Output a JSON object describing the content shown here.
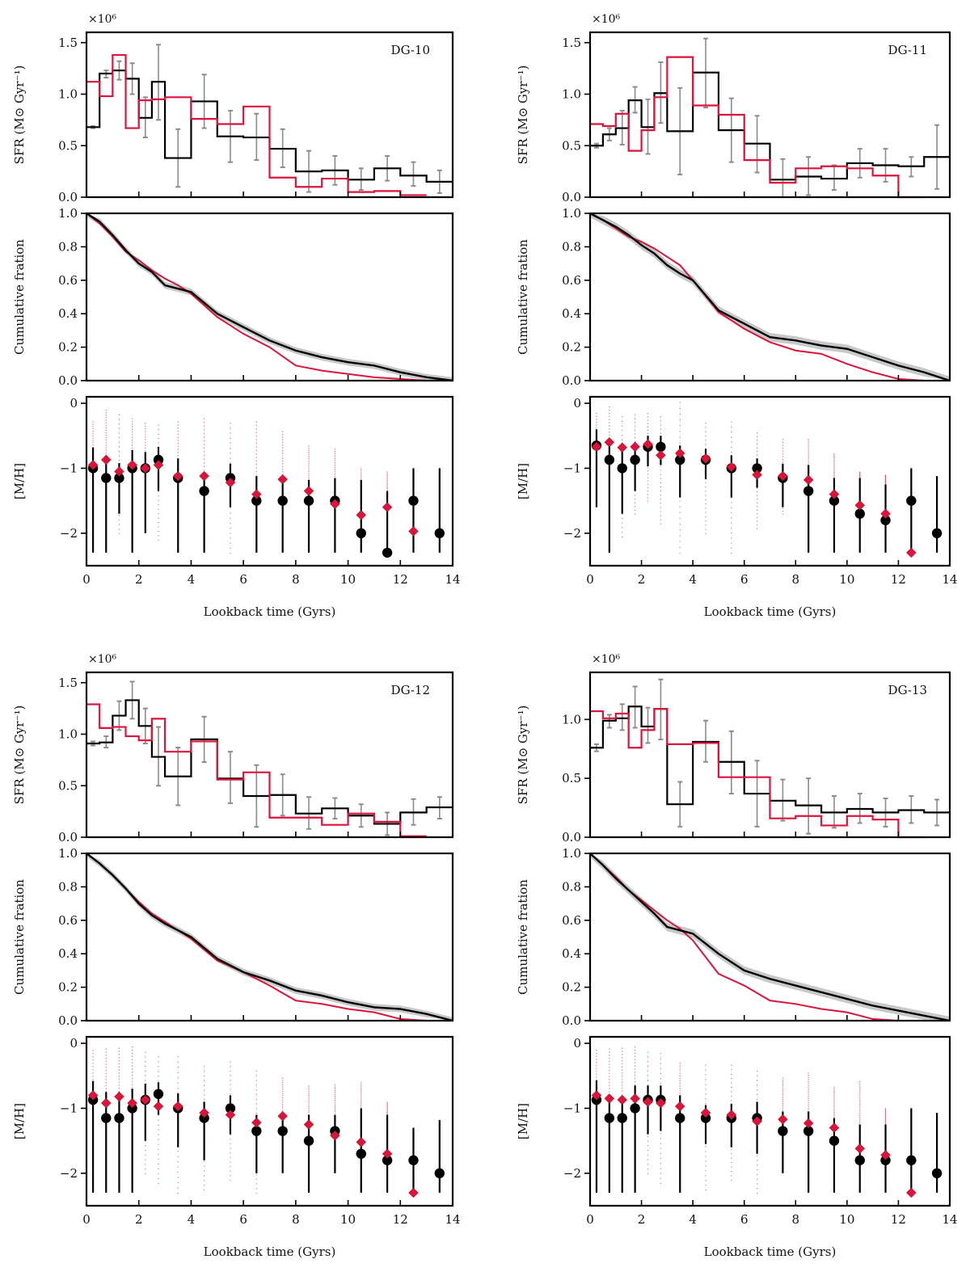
{
  "chart_data": {
    "type": "composite",
    "title": "",
    "colors": {
      "truth": "#000000",
      "recovered": "#dc143c",
      "errorbar": "#8c8c8c",
      "band": "#c8c8c8",
      "scatter": "#e05070"
    },
    "shared": {
      "xlabel": "Lookback time (Gyrs)",
      "xlim": [
        0,
        14
      ],
      "xticks": [
        0,
        2,
        4,
        6,
        8,
        10,
        12,
        14
      ],
      "sfr_ylabel": "SFR (M⊙ Gyr⁻¹)",
      "sfr_multiplier": "×10⁶",
      "cum_ylabel": "Cumulative fration",
      "mh_ylabel": "[M/H]",
      "cum_ylim": [
        0,
        1
      ],
      "cum_yticks": [
        "0.0",
        "0.2",
        "0.4",
        "0.6",
        "0.8",
        "1.0"
      ],
      "mh_ylim": [
        -2.5,
        0.1
      ],
      "mh_yticks": [
        "0",
        "−1",
        "−2"
      ],
      "bin_edges": [
        0,
        0.5,
        1,
        1.5,
        2,
        2.5,
        3,
        4,
        5,
        6,
        7,
        8,
        9,
        10,
        11,
        12,
        13,
        14
      ],
      "mh_x": [
        0.25,
        0.75,
        1.25,
        1.75,
        2.25,
        2.75,
        3.5,
        4.5,
        5.5,
        6.5,
        7.5,
        8.5,
        9.5,
        10.5,
        11.5,
        12.5,
        13.5
      ]
    },
    "galaxies": [
      {
        "name": "DG-10",
        "sfr_ylim": [
          0,
          1.6
        ],
        "sfr_yticks": [
          "0.0",
          "0.5",
          "1.0",
          "1.5"
        ],
        "sfr_black": [
          0.68,
          1.2,
          1.23,
          1.15,
          0.77,
          1.12,
          0.38,
          0.93,
          0.59,
          0.58,
          0.47,
          0.25,
          0.26,
          0.17,
          0.28,
          0.21,
          0.15
        ],
        "sfr_red": [
          1.12,
          0.98,
          1.38,
          0.67,
          0.94,
          0.95,
          0.97,
          0.76,
          0.71,
          0.88,
          0.19,
          0.1,
          0.18,
          0.05,
          0.06,
          0.02,
          null
        ],
        "sfr_err_low": [
          0.67,
          1.16,
          1.14,
          1.0,
          0.58,
          0.75,
          0.1,
          0.67,
          0.34,
          0.36,
          0.29,
          0.05,
          0.12,
          0.07,
          0.16,
          0.11,
          0.04
        ],
        "sfr_err_high": [
          0.69,
          1.23,
          1.32,
          1.3,
          0.97,
          1.48,
          0.66,
          1.19,
          0.84,
          0.81,
          0.66,
          0.45,
          0.4,
          0.28,
          0.4,
          0.34,
          0.26
        ],
        "cum_x": [
          0,
          0.5,
          1,
          1.5,
          2,
          2.5,
          3,
          3.5,
          4,
          5,
          6,
          7,
          8,
          9,
          10,
          11,
          12,
          13,
          14
        ],
        "cum_black": [
          1.0,
          0.95,
          0.87,
          0.78,
          0.7,
          0.65,
          0.57,
          0.55,
          0.53,
          0.4,
          0.32,
          0.24,
          0.18,
          0.14,
          0.11,
          0.09,
          0.05,
          0.02,
          0.0
        ],
        "cum_red": [
          1.0,
          0.94,
          0.86,
          0.77,
          0.72,
          0.66,
          0.61,
          0.57,
          0.52,
          0.38,
          0.28,
          0.2,
          0.09,
          0.06,
          0.04,
          0.02,
          0.01,
          0.0,
          0.0
        ],
        "cum_band": 0.02,
        "mh_black": [
          -1.0,
          -1.15,
          -1.15,
          -1.0,
          -1.0,
          -0.87,
          -1.15,
          -1.35,
          -1.15,
          -1.5,
          -1.5,
          -1.5,
          -1.5,
          -2.0,
          -2.3,
          -1.5,
          -2.0
        ],
        "mh_black_low": [
          -2.3,
          -2.3,
          -1.7,
          -2.3,
          -2.0,
          -1.35,
          -2.3,
          -2.3,
          -1.6,
          -2.3,
          -2.3,
          -2.3,
          -2.3,
          -2.3,
          -2.3,
          -2.3,
          -2.3
        ],
        "mh_black_high": [
          -0.68,
          -0.88,
          -0.92,
          -0.72,
          -0.75,
          -0.67,
          -0.85,
          -1.15,
          -0.93,
          -1.12,
          -1.12,
          -1.18,
          -1.15,
          -1.18,
          -1.35,
          -1.0,
          -1.0
        ],
        "mh_red": [
          -0.95,
          -0.87,
          -1.05,
          -0.95,
          -1.0,
          -0.95,
          -1.12,
          -1.12,
          -1.22,
          -1.4,
          -1.17,
          -1.35,
          -1.55,
          -1.72,
          -1.6,
          -1.97,
          null
        ],
        "mh_scatter_top": [
          -0.28,
          -0.1,
          -0.17,
          -0.23,
          -0.3,
          -0.33,
          -0.28,
          -0.23,
          -0.3,
          -0.28,
          -0.43,
          -0.65,
          -0.7,
          -1.0,
          -1.05,
          null,
          null
        ],
        "mh_scatter_bottom": [
          -1.2,
          -1.1,
          -2.0,
          -1.3,
          -1.4,
          -2.1,
          -1.5,
          -1.7,
          -2.3,
          -1.7,
          -1.5,
          -1.5,
          -1.6,
          null,
          null,
          null,
          null
        ]
      },
      {
        "name": "DG-11",
        "sfr_ylim": [
          0,
          1.6
        ],
        "sfr_yticks": [
          "0.0",
          "0.5",
          "1.0",
          "1.5"
        ],
        "sfr_black": [
          0.5,
          0.61,
          0.67,
          0.94,
          0.68,
          1.01,
          0.64,
          1.21,
          0.65,
          0.52,
          0.17,
          0.2,
          0.18,
          0.33,
          0.31,
          0.3,
          0.39
        ],
        "sfr_red": [
          0.71,
          0.69,
          0.81,
          0.45,
          0.65,
          0.97,
          1.36,
          0.89,
          0.8,
          0.36,
          0.14,
          0.28,
          0.3,
          0.28,
          0.21,
          0.0,
          null
        ],
        "sfr_err_low": [
          0.48,
          0.55,
          0.51,
          0.82,
          0.42,
          0.72,
          0.22,
          0.87,
          0.34,
          0.24,
          0.0,
          0.02,
          0.07,
          0.19,
          0.15,
          0.2,
          0.08
        ],
        "sfr_err_high": [
          0.52,
          0.67,
          0.84,
          1.07,
          0.95,
          1.31,
          1.06,
          1.54,
          0.96,
          0.79,
          0.37,
          0.39,
          0.31,
          0.47,
          0.47,
          0.39,
          0.7
        ],
        "cum_x": [
          0,
          0.5,
          1,
          1.5,
          2,
          2.5,
          3,
          3.5,
          4,
          5,
          6,
          7,
          8,
          9,
          10,
          11,
          12,
          13,
          14
        ],
        "cum_black": [
          1.0,
          0.96,
          0.92,
          0.87,
          0.81,
          0.76,
          0.69,
          0.64,
          0.6,
          0.42,
          0.34,
          0.26,
          0.24,
          0.21,
          0.19,
          0.14,
          0.09,
          0.05,
          0.0
        ],
        "cum_red": [
          1.0,
          0.96,
          0.91,
          0.86,
          0.83,
          0.79,
          0.74,
          0.69,
          0.6,
          0.41,
          0.31,
          0.23,
          0.18,
          0.16,
          0.1,
          0.05,
          0.01,
          0.0,
          0.0
        ],
        "cum_band": 0.025,
        "mh_black": [
          -0.65,
          -0.87,
          -1.0,
          -0.87,
          -0.67,
          -0.67,
          -0.87,
          -0.87,
          -1.0,
          -1.0,
          -1.15,
          -1.35,
          -1.5,
          -1.7,
          -1.8,
          -1.5,
          -2.0
        ],
        "mh_black_low": [
          -1.6,
          -2.3,
          -1.7,
          -1.35,
          -0.97,
          -0.95,
          -1.45,
          -1.17,
          -1.45,
          -1.3,
          -1.6,
          -2.3,
          -2.3,
          -2.3,
          -2.3,
          -2.3,
          -2.3
        ],
        "mh_black_high": [
          -0.4,
          -0.65,
          -0.72,
          -0.6,
          -0.5,
          -0.5,
          -0.65,
          -0.7,
          -0.8,
          -0.85,
          -0.93,
          -0.95,
          -1.15,
          -1.15,
          -1.25,
          -1.0,
          -1.12
        ],
        "mh_red": [
          -0.67,
          -0.6,
          -0.68,
          -0.67,
          -0.63,
          -0.8,
          -0.77,
          -0.85,
          -0.98,
          -1.1,
          -1.12,
          -1.18,
          -1.4,
          -1.57,
          -1.7,
          -2.3,
          null
        ],
        "mh_scatter_top": [
          -0.15,
          -0.05,
          -0.2,
          -0.17,
          -0.15,
          -0.2,
          0.02,
          -0.3,
          -0.28,
          -0.45,
          -0.55,
          -0.55,
          -0.77,
          -1.05,
          -1.1,
          null,
          null
        ],
        "mh_scatter_bottom": [
          -1.3,
          -1.3,
          -2.05,
          -1.7,
          -1.5,
          -1.85,
          -2.3,
          -2.0,
          -2.3,
          -1.92,
          -1.7,
          -1.3,
          -1.3,
          -1.25,
          -1.25,
          null,
          null
        ]
      },
      {
        "name": "DG-12",
        "sfr_ylim": [
          0,
          1.6
        ],
        "sfr_yticks": [
          "0.0",
          "0.5",
          "1.0",
          "1.5"
        ],
        "sfr_black": [
          0.91,
          0.92,
          1.18,
          1.33,
          1.08,
          0.78,
          0.59,
          0.95,
          0.57,
          0.4,
          0.41,
          0.23,
          0.28,
          0.21,
          0.13,
          0.24,
          0.29
        ],
        "sfr_red": [
          1.29,
          1.06,
          1.07,
          0.98,
          0.94,
          1.15,
          0.83,
          0.93,
          0.56,
          0.63,
          0.19,
          0.19,
          0.12,
          0.23,
          0.15,
          0.01,
          null
        ],
        "sfr_err_low": [
          0.89,
          0.87,
          1.04,
          1.15,
          0.91,
          0.5,
          0.31,
          0.73,
          0.33,
          0.1,
          0.21,
          0.08,
          0.18,
          0.1,
          0.02,
          0.12,
          0.18
        ],
        "sfr_err_high": [
          0.93,
          0.98,
          1.32,
          1.51,
          1.25,
          1.07,
          0.87,
          1.17,
          0.83,
          0.7,
          0.61,
          0.39,
          0.38,
          0.32,
          0.24,
          0.37,
          0.39
        ],
        "cum_x": [
          0,
          0.5,
          1,
          1.5,
          2,
          2.5,
          3,
          3.5,
          4,
          5,
          6,
          7,
          8,
          9,
          10,
          11,
          12,
          13,
          14
        ],
        "cum_black": [
          1.0,
          0.94,
          0.87,
          0.79,
          0.7,
          0.63,
          0.58,
          0.54,
          0.5,
          0.37,
          0.29,
          0.24,
          0.18,
          0.15,
          0.11,
          0.08,
          0.07,
          0.04,
          0.0
        ],
        "cum_red": [
          1.0,
          0.94,
          0.87,
          0.79,
          0.71,
          0.64,
          0.59,
          0.54,
          0.49,
          0.36,
          0.29,
          0.21,
          0.12,
          0.1,
          0.07,
          0.05,
          0.01,
          0.0,
          0.0
        ],
        "cum_band": 0.02,
        "mh_black": [
          -0.87,
          -1.15,
          -1.15,
          -1.0,
          -0.87,
          -0.78,
          -1.0,
          -1.15,
          -1.0,
          -1.35,
          -1.35,
          -1.5,
          -1.35,
          -1.7,
          -1.8,
          -1.8,
          -2.0
        ],
        "mh_black_low": [
          -2.3,
          -2.3,
          -2.3,
          -2.3,
          -1.5,
          -1.1,
          -1.6,
          -1.8,
          -1.4,
          -2.0,
          -2.0,
          -2.3,
          -2.0,
          -2.3,
          -2.3,
          -2.3,
          -2.3
        ],
        "mh_black_high": [
          -0.58,
          -0.75,
          -0.75,
          -0.7,
          -0.62,
          -0.6,
          -0.77,
          -0.9,
          -0.8,
          -1.1,
          -1.1,
          -1.1,
          -1.1,
          -1.0,
          -1.1,
          -1.3,
          -1.18
        ],
        "mh_red": [
          -0.8,
          -0.92,
          -0.82,
          -0.92,
          -0.87,
          -0.97,
          -0.97,
          -1.07,
          -1.1,
          -1.22,
          -1.12,
          -1.25,
          -1.42,
          -1.52,
          -1.7,
          -2.3,
          null
        ],
        "mh_scatter_top": [
          -0.1,
          -0.08,
          -0.07,
          -0.05,
          -0.13,
          -0.2,
          -0.2,
          -0.35,
          -0.28,
          -0.42,
          -0.53,
          -0.65,
          -0.63,
          -0.6,
          -0.9,
          null,
          null
        ],
        "mh_scatter_bottom": [
          -1.4,
          -1.3,
          -1.3,
          -1.3,
          -2.0,
          -2.15,
          -2.3,
          -2.25,
          -2.1,
          -2.3,
          -1.4,
          -1.4,
          -1.4,
          -1.3,
          -1.3,
          null,
          null
        ]
      },
      {
        "name": "DG-13",
        "sfr_ylim": [
          0,
          1.4
        ],
        "sfr_yticks": [
          "0.0",
          "0.5",
          "1.0"
        ],
        "sfr_black": [
          0.76,
          0.99,
          1.01,
          1.11,
          0.94,
          1.09,
          0.28,
          0.81,
          0.64,
          0.37,
          0.31,
          0.27,
          0.21,
          0.24,
          0.21,
          0.23,
          0.21
        ],
        "sfr_red": [
          1.07,
          1.01,
          1.05,
          0.76,
          0.91,
          1.09,
          0.79,
          0.8,
          0.51,
          0.51,
          0.16,
          0.18,
          0.1,
          0.18,
          0.15,
          0.0,
          null
        ],
        "sfr_err_low": [
          0.73,
          0.93,
          0.91,
          0.93,
          0.8,
          0.83,
          0.09,
          0.64,
          0.37,
          0.09,
          0.14,
          0.03,
          0.08,
          0.12,
          0.09,
          0.12,
          0.1
        ],
        "sfr_err_high": [
          0.79,
          1.04,
          1.13,
          1.28,
          1.1,
          1.34,
          0.47,
          0.99,
          0.9,
          0.65,
          0.49,
          0.5,
          0.35,
          0.37,
          0.33,
          0.35,
          0.32
        ],
        "cum_x": [
          0,
          0.5,
          1,
          1.5,
          2,
          2.5,
          3,
          3.5,
          4,
          5,
          6,
          7,
          8,
          9,
          10,
          11,
          12,
          13,
          14
        ],
        "cum_black": [
          1.0,
          0.93,
          0.85,
          0.78,
          0.71,
          0.64,
          0.56,
          0.54,
          0.52,
          0.4,
          0.3,
          0.25,
          0.21,
          0.17,
          0.13,
          0.09,
          0.06,
          0.03,
          0.0
        ],
        "cum_red": [
          1.0,
          0.93,
          0.86,
          0.78,
          0.72,
          0.66,
          0.6,
          0.55,
          0.48,
          0.28,
          0.21,
          0.12,
          0.1,
          0.07,
          0.05,
          0.01,
          0.0,
          0.0,
          0.0
        ],
        "cum_band": 0.025,
        "mh_black": [
          -0.87,
          -1.15,
          -1.15,
          -1.0,
          -0.87,
          -0.87,
          -1.15,
          -1.15,
          -1.15,
          -1.15,
          -1.35,
          -1.35,
          -1.5,
          -1.8,
          -1.8,
          -1.8,
          -2.0
        ],
        "mh_black_low": [
          -2.3,
          -2.3,
          -2.3,
          -2.3,
          -1.4,
          -1.35,
          -2.3,
          -1.55,
          -1.6,
          -1.7,
          -2.0,
          -2.3,
          -2.3,
          -2.3,
          -2.3,
          -2.3,
          -2.3
        ],
        "mh_black_high": [
          -0.57,
          -0.85,
          -0.85,
          -0.65,
          -0.65,
          -0.65,
          -0.8,
          -0.95,
          -0.93,
          -0.9,
          -1.05,
          -1.05,
          -1.15,
          -1.25,
          -1.25,
          -1.0,
          -1.07
        ],
        "mh_red": [
          -0.8,
          -0.85,
          -0.87,
          -0.85,
          -0.9,
          -0.92,
          -0.97,
          -1.07,
          -1.1,
          -1.2,
          -1.17,
          -1.23,
          -1.3,
          -1.62,
          -1.72,
          -2.3,
          null
        ],
        "mh_scatter_top": [
          -0.1,
          -0.08,
          -0.07,
          -0.05,
          -0.13,
          -0.15,
          -0.3,
          -0.33,
          -0.33,
          -0.42,
          -0.53,
          -0.45,
          -0.67,
          -0.58,
          -1.0,
          null,
          null
        ],
        "mh_scatter_bottom": [
          -1.3,
          -1.3,
          -1.3,
          -1.3,
          -2.0,
          -2.15,
          -1.3,
          -2.25,
          -2.1,
          -2.3,
          -1.3,
          -1.3,
          -1.3,
          -1.3,
          -1.3,
          null,
          null
        ]
      }
    ]
  }
}
